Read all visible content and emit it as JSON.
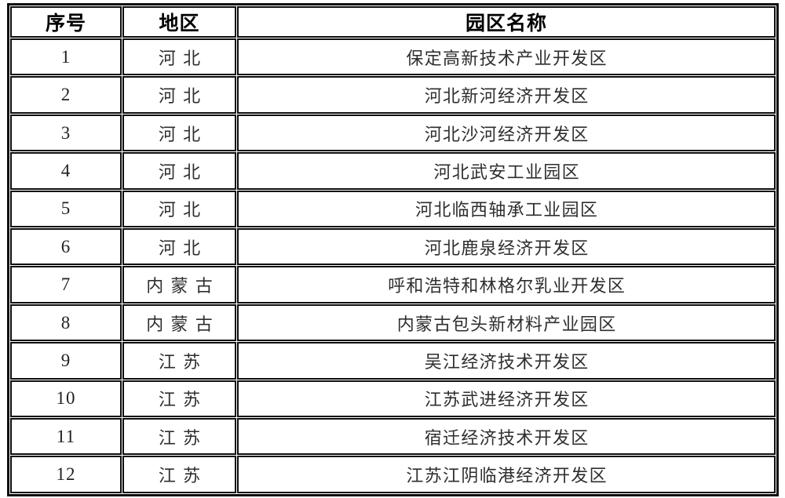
{
  "table": {
    "columns": [
      {
        "key": "index",
        "label": "序号"
      },
      {
        "key": "region",
        "label": "地区"
      },
      {
        "key": "park",
        "label": "园区名称"
      }
    ],
    "rows": [
      {
        "index": "1",
        "region": "河北",
        "park": "保定高新技术产业开发区"
      },
      {
        "index": "2",
        "region": "河北",
        "park": "河北新河经济开发区"
      },
      {
        "index": "3",
        "region": "河北",
        "park": "河北沙河经济开发区"
      },
      {
        "index": "4",
        "region": "河北",
        "park": "河北武安工业园区"
      },
      {
        "index": "5",
        "region": "河北",
        "park": "河北临西轴承工业园区"
      },
      {
        "index": "6",
        "region": "河北",
        "park": "河北鹿泉经济开发区"
      },
      {
        "index": "7",
        "region": "内蒙古",
        "park": "呼和浩特和林格尔乳业开发区"
      },
      {
        "index": "8",
        "region": "内蒙古",
        "park": "内蒙古包头新材料产业园区"
      },
      {
        "index": "9",
        "region": "江苏",
        "park": "吴江经济技术开发区"
      },
      {
        "index": "10",
        "region": "江苏",
        "park": "江苏武进经济开发区"
      },
      {
        "index": "11",
        "region": "江苏",
        "park": "宿迁经济技术开发区"
      },
      {
        "index": "12",
        "region": "江苏",
        "park": "江苏江阴临港经济开发区"
      }
    ]
  },
  "colors": {
    "border": "#0d0d0d",
    "text": "#2e2e2e",
    "header_text": "#000000",
    "background": "#ffffff"
  }
}
